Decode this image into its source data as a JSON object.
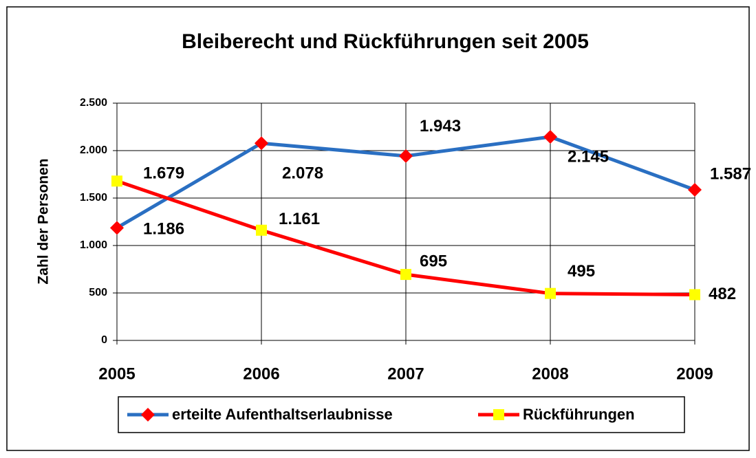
{
  "chart_data": {
    "type": "line",
    "title": "Bleiberecht und Rückführungen seit 2005",
    "y_label": "Zahl der Personen",
    "categories": [
      "2005",
      "2006",
      "2007",
      "2008",
      "2009"
    ],
    "series": [
      {
        "name": "erteilte Aufenthaltserlaubnisse",
        "color": "#2a6fc2",
        "marker": "diamond",
        "marker_color": "#ff0000",
        "values": [
          1186,
          2078,
          1943,
          2145,
          1587
        ],
        "value_labels": [
          "1.186",
          "2.078",
          "1.943",
          "2.145",
          "1.587"
        ]
      },
      {
        "name": "Rückführungen",
        "color": "#ff0000",
        "marker": "square",
        "marker_color": "#ffff00",
        "values": [
          1679,
          1161,
          695,
          495,
          482
        ],
        "value_labels": [
          "1.679",
          "1.161",
          "695",
          "495",
          "482"
        ]
      }
    ],
    "ylim": [
      0,
      2500
    ],
    "yticks": [
      0,
      500,
      {
        "value": 1000,
        "label": "1.000"
      },
      {
        "value": 1500,
        "label": "1.500"
      },
      {
        "value": 2000,
        "label": "2.000"
      },
      {
        "value": 2500,
        "label": "2.500"
      }
    ],
    "grid": true,
    "legend": "bottom"
  }
}
